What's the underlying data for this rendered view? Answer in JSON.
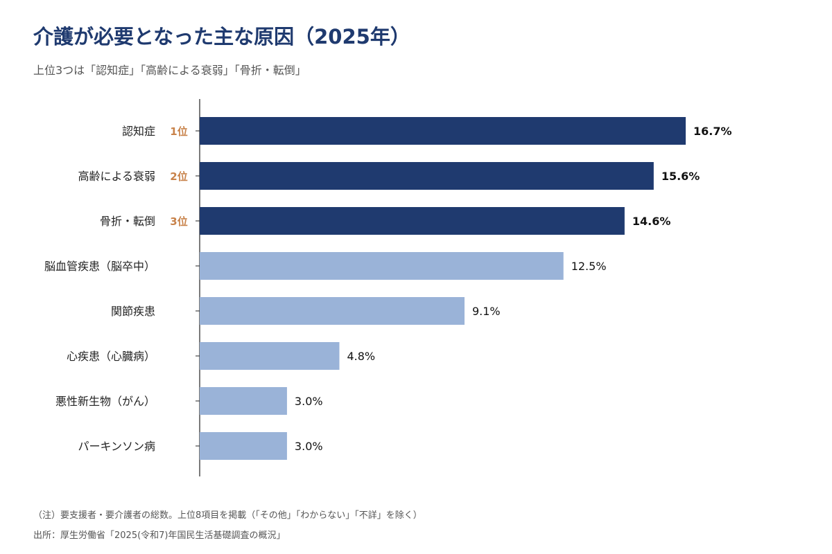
{
  "colors": {
    "title": "#1f3a6f",
    "top_bar": "#1f3a6f",
    "other_bar": "#9ab3d8",
    "rank": "#c8824a",
    "axis": "#222222",
    "label": "#222222",
    "note": "#555555"
  },
  "chart_data": {
    "type": "bar",
    "orientation": "horizontal",
    "title": "介護が必要となった主な原因（2025年）",
    "subtitle": "上位3つは「認知症」「高齢による衰弱」「骨折・転倒」",
    "categories": [
      "認知症",
      "高齢による衰弱",
      "骨折・転倒",
      "脳血管疾患（脳卒中）",
      "関節疾患",
      "心疾患（心臓病）",
      "悪性新生物（がん）",
      "パーキンソン病"
    ],
    "values": [
      16.7,
      15.6,
      14.6,
      12.5,
      9.1,
      4.8,
      3.0,
      3.0
    ],
    "value_labels": [
      "16.7%",
      "15.6%",
      "14.6%",
      "12.5%",
      "9.1%",
      "4.8%",
      "3.0%",
      "3.0%"
    ],
    "ranks": [
      "1位",
      "2位",
      "3位",
      "",
      "",
      "",
      "",
      ""
    ],
    "highlight_top": 3,
    "xlim": [
      0,
      20
    ],
    "grid": false,
    "legend": "none"
  },
  "notes": {
    "note1": "（注）要支援者・要介護者の総数。上位8項目を掲載（「その他」「わからない」「不詳」を除く）",
    "note2": "出所：厚生労働省「2025(令和7)年国民生活基礎調査の概況」"
  }
}
